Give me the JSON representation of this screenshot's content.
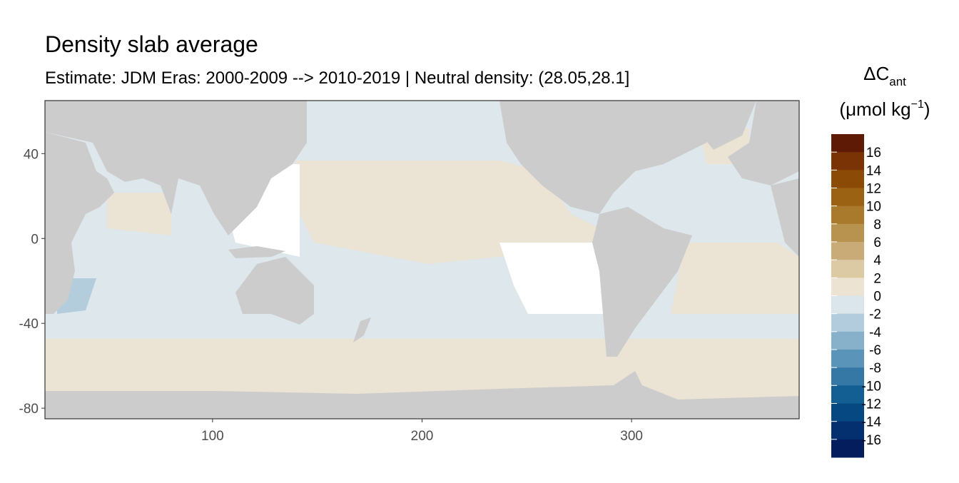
{
  "chart_data": {
    "type": "map",
    "title": "Density slab average",
    "subtitle": "Estimate: JDM Eras: 2000-2009 --> 2010-2019 | Neutral density: (28.05,28.1]",
    "xlim": [
      20,
      380
    ],
    "ylim": [
      -85,
      65
    ],
    "xticks": [
      100,
      200,
      300
    ],
    "yticks": [
      40,
      0,
      -40,
      -80
    ],
    "grid": true,
    "legend": {
      "title_main": "ΔC",
      "title_sub": "ant",
      "unit_main": "(μmol kg",
      "unit_sup": "−1",
      "unit_close": ")",
      "breaks": [
        16,
        14,
        12,
        10,
        8,
        6,
        4,
        2,
        0,
        -2,
        -4,
        -6,
        -8,
        -10,
        -12,
        -14,
        -16
      ],
      "colors": [
        "#5e1a05",
        "#7a3304",
        "#8b4a06",
        "#9a6212",
        "#a97a2c",
        "#b8934f",
        "#c9ab78",
        "#dccaa4",
        "#ece3d2",
        "#dbe6ec",
        "#b2ccdd",
        "#87b1cb",
        "#5b94b9",
        "#3578a6",
        "#135e93",
        "#064882",
        "#05306f",
        "#041e5d"
      ]
    }
  }
}
